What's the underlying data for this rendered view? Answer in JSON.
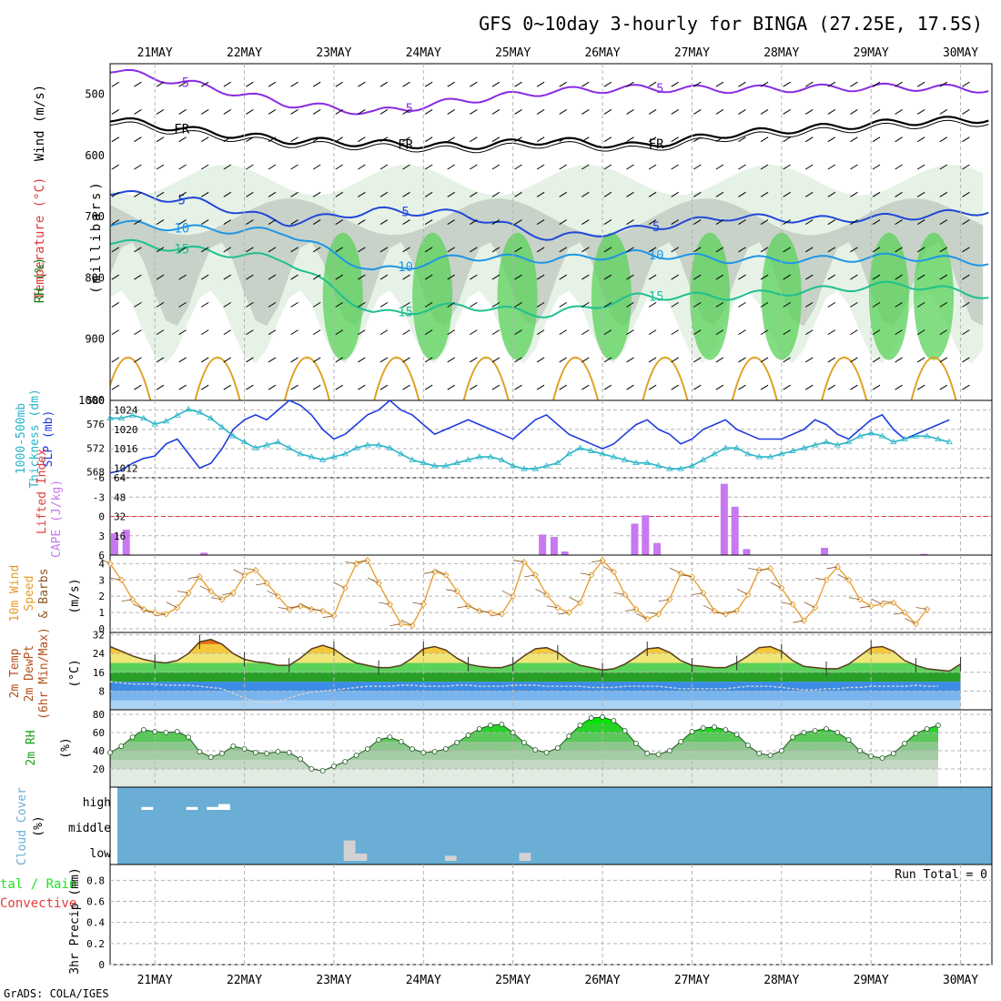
{
  "title": "GFS 0~10day 3-hourly for BINGA (27.25E, 17.5S)",
  "footer": "GrADS: COLA/IGES",
  "run_total_label": "Run Total = 0",
  "colors": {
    "grid": "#b4b4b4",
    "wind_purple": "#8a2be2",
    "freezing_black": "#000000",
    "temp_blue": "#1f48d8",
    "temp_lightblue": "#1e96e6",
    "temp_teal": "#1ec090",
    "temp_orange": "#e0a020",
    "rh_green": "#5ad25a",
    "rh_light": "#e6f2e6",
    "rh_gray": "#c8d2c8",
    "slp_blue": "#1e3cdc",
    "thickness_cyan": "#28b4c8",
    "cape_purple": "#c878f0",
    "lifted_red": "#e03c3c",
    "wind_orange": "#e69b28",
    "barb_brown": "#8b5a2b",
    "cloud_blue": "#6aaed6",
    "cloud_gray": "#d2d2d2",
    "rh2m_green": "#1ee61e"
  },
  "labels": {
    "panel1": {
      "wind": "Wind (m/s)",
      "temperature": "Temperature (°C)",
      "rh": "RH (%)",
      "millibars": "(millibars)"
    },
    "panel2": {
      "thickness": "1000-500mb",
      "thickness2": "Thickness (dm)",
      "slp": "SLP (mb)"
    },
    "panel3": {
      "lifted": "Lifted Index",
      "cape": "CAPE (J/kg)"
    },
    "panel4": {
      "line1": "10m Wind",
      "line2": "Speed",
      "line3": "& Barbs",
      "unit": "(m/s)"
    },
    "panel5": {
      "line1": "2m Temp",
      "line2": "2m DewPt",
      "line3": "(6hr Min/Max)",
      "unit": "(°C)"
    },
    "panel6": {
      "line1": "2m RH",
      "unit": "(%)"
    },
    "panel7": {
      "line1": "Cloud Cover",
      "unit": "(%)"
    },
    "panel8": {
      "line1": "tal / Rain",
      "line2": "Convective",
      "line3": "3hr Precip (mm)"
    }
  },
  "chart_data": [
    {
      "type": "heatmap",
      "x_labels": [
        "21MAY",
        "22MAY",
        "23MAY",
        "24MAY",
        "25MAY",
        "26MAY",
        "27MAY",
        "28MAY",
        "29MAY",
        "30MAY"
      ],
      "y_ticks": [
        500,
        600,
        700,
        800,
        900,
        1000
      ],
      "ylim": [
        1000,
        450
      ],
      "contours": [
        {
          "label": "-5",
          "kind": "temperature",
          "levels_mb": [
            460,
            485,
            515,
            530,
            510,
            495,
            490,
            492,
            490,
            488,
            492
          ]
        },
        {
          "label": "FR",
          "kind": "freezing",
          "levels_mb": [
            540,
            560,
            575,
            580,
            585,
            575,
            585,
            565,
            555,
            545,
            540
          ]
        },
        {
          "label": "5",
          "kind": "temperature",
          "levels_mb": [
            660,
            675,
            710,
            690,
            695,
            735,
            720,
            700,
            705,
            700,
            690
          ]
        },
        {
          "label": "10",
          "kind": "temperature",
          "levels_mb": [
            710,
            720,
            725,
            790,
            765,
            770,
            760,
            770,
            770,
            765,
            775
          ]
        },
        {
          "label": "15",
          "kind": "temperature",
          "levels_mb": [
            740,
            755,
            770,
            860,
            845,
            860,
            830,
            830,
            820,
            810,
            830
          ]
        }
      ],
      "rh_bands_label": "RH (%)"
    },
    {
      "type": "line",
      "x_labels": [
        "21MAY",
        "22MAY",
        "23MAY",
        "24MAY",
        "25MAY",
        "26MAY",
        "27MAY",
        "28MAY",
        "29MAY",
        "30MAY"
      ],
      "left_axis": {
        "ticks": [
          568,
          572,
          576,
          580
        ],
        "ylim": [
          567,
          580
        ]
      },
      "right_axis": {
        "ticks": [
          1012,
          1016,
          1020,
          1024
        ],
        "ylim": [
          1010,
          1026
        ]
      },
      "series": [
        {
          "name": "SLP (mb)",
          "axis": "right",
          "values": [
            1011,
            1011.5,
            1013,
            1014,
            1014.5,
            1017,
            1018,
            1015,
            1012,
            1013,
            1016,
            1020,
            1022,
            1023,
            1022,
            1024,
            1026,
            1025,
            1023,
            1020,
            1018,
            1019,
            1021,
            1023,
            1024,
            1026,
            1024,
            1023,
            1021,
            1019,
            1020,
            1021,
            1022,
            1021,
            1020,
            1019,
            1018,
            1020,
            1022,
            1023,
            1021,
            1019,
            1018,
            1017,
            1016,
            1017,
            1019,
            1021,
            1022,
            1020,
            1019,
            1017,
            1018,
            1020,
            1021,
            1022,
            1020,
            1019,
            1018,
            1018,
            1018,
            1019,
            1020,
            1022,
            1021,
            1019,
            1018,
            1020,
            1022,
            1023,
            1020,
            1018,
            1019,
            1020,
            1021,
            1022
          ]
        },
        {
          "name": "1000-500mb Thickness (dm)",
          "axis": "left",
          "values": [
            577,
            577,
            577.5,
            577,
            576,
            576.5,
            577.5,
            578.5,
            578,
            577,
            575.5,
            574,
            573,
            572,
            572.5,
            573,
            572,
            571,
            570.5,
            570,
            570.5,
            571,
            572,
            572.5,
            572.5,
            572,
            571,
            570,
            569.5,
            569,
            569,
            569.5,
            570,
            570.5,
            570.5,
            570,
            569,
            568.5,
            568.5,
            569,
            569.5,
            571,
            572,
            571.5,
            571,
            570.5,
            570,
            569.5,
            569.5,
            569,
            568.5,
            568.5,
            569,
            570,
            571,
            572,
            572,
            571,
            570.5,
            570.5,
            571,
            571.5,
            572,
            572.5,
            573,
            572.5,
            573,
            574,
            574.5,
            574,
            573,
            573.5,
            574,
            574,
            573.5,
            573
          ]
        }
      ]
    },
    {
      "type": "bar",
      "x_labels": [
        "21MAY",
        "22MAY",
        "23MAY",
        "24MAY",
        "25MAY",
        "26MAY",
        "27MAY",
        "28MAY",
        "29MAY",
        "30MAY"
      ],
      "cape_ticks": [
        16,
        32,
        48,
        64
      ],
      "lifted_ticks": [
        -6,
        -3,
        0,
        3,
        6
      ],
      "ylim": [
        0,
        64
      ],
      "bars": [
        {
          "day": 20.55,
          "value": 18
        },
        {
          "day": 20.68,
          "value": 21
        },
        {
          "day": 21.55,
          "value": 2
        },
        {
          "day": 25.33,
          "value": 17
        },
        {
          "day": 25.46,
          "value": 15
        },
        {
          "day": 25.58,
          "value": 3
        },
        {
          "day": 26.36,
          "value": 26
        },
        {
          "day": 26.48,
          "value": 33
        },
        {
          "day": 26.61,
          "value": 10
        },
        {
          "day": 27.36,
          "value": 59
        },
        {
          "day": 27.48,
          "value": 40
        },
        {
          "day": 27.61,
          "value": 5
        },
        {
          "day": 28.48,
          "value": 6
        },
        {
          "day": 29.59,
          "value": 1
        }
      ],
      "lifted_index_zero_line": 0
    },
    {
      "type": "line",
      "x_labels": [
        "21MAY",
        "22MAY",
        "23MAY",
        "24MAY",
        "25MAY",
        "26MAY",
        "27MAY",
        "28MAY",
        "29MAY",
        "30MAY"
      ],
      "y_ticks": [
        0,
        1,
        2,
        3,
        4
      ],
      "ylim": [
        0,
        4.3
      ],
      "series": [
        {
          "name": "10m Wind Speed",
          "values": [
            4,
            3,
            1.8,
            1.2,
            1,
            0.9,
            1.3,
            2.2,
            3.2,
            2.3,
            1.8,
            2.2,
            3.3,
            3.6,
            2.8,
            2,
            1.2,
            1.4,
            1.2,
            1.1,
            0.8,
            2.5,
            4,
            4.2,
            2.8,
            1.5,
            0.3,
            0.2,
            1.5,
            3.5,
            3.3,
            2.3,
            1.4,
            1.1,
            1,
            0.9,
            2,
            4.1,
            3.3,
            2.1,
            1.3,
            1,
            1.6,
            3.3,
            4.2,
            3.5,
            2.1,
            1.2,
            0.6,
            0.9,
            1.8,
            3.4,
            3.2,
            2.2,
            1.1,
            0.9,
            1.1,
            2.1,
            3.6,
            3.7,
            2.5,
            1.5,
            0.5,
            1.3,
            3,
            3.8,
            3,
            1.8,
            1.4,
            1.5,
            1.6,
            1,
            0.3,
            1.2
          ]
        }
      ]
    },
    {
      "type": "area",
      "x_labels": [
        "21MAY",
        "22MAY",
        "23MAY",
        "24MAY",
        "25MAY",
        "26MAY",
        "27MAY",
        "28MAY",
        "29MAY",
        "30MAY"
      ],
      "y_ticks": [
        8,
        16,
        24,
        32
      ],
      "ylim": [
        0,
        33
      ],
      "series": [
        {
          "name": "2m Temp",
          "values": [
            27,
            25,
            23,
            21.5,
            20.5,
            20,
            21,
            24,
            29,
            30,
            28,
            24,
            21.5,
            20.5,
            20,
            19,
            19,
            22,
            26,
            27.5,
            26,
            22.5,
            20,
            19,
            18,
            18,
            19,
            22,
            26,
            27,
            25.5,
            22,
            19.5,
            18.5,
            18,
            18,
            19.5,
            23,
            26,
            26.5,
            24.5,
            21,
            19,
            18,
            17,
            17.5,
            19.5,
            22.5,
            26,
            26.5,
            24.5,
            21,
            19,
            18.5,
            18,
            18,
            20,
            23,
            26.5,
            27,
            25,
            21,
            18.5,
            18,
            17.5,
            17.5,
            19.5,
            23,
            26.5,
            27,
            25,
            21,
            19,
            17.5,
            17,
            16.5,
            19.5
          ]
        },
        {
          "name": "2m DewPt",
          "values": [
            12,
            11.5,
            11,
            11,
            11,
            10.5,
            10.5,
            10.5,
            10,
            9.5,
            9,
            7,
            5,
            3.5,
            3,
            3.5,
            5,
            6.5,
            7.5,
            8,
            8.5,
            9,
            9.5,
            10,
            10,
            10,
            10.5,
            10.5,
            10,
            10,
            10,
            10.5,
            10.5,
            10,
            10,
            10,
            10.5,
            10.5,
            10.5,
            10,
            10,
            10,
            10,
            9.5,
            9.5,
            9.5,
            10,
            10,
            10,
            10,
            9.5,
            9,
            9,
            9,
            9,
            9,
            9.5,
            10,
            10,
            10,
            9.5,
            9,
            8.5,
            8.5,
            9,
            9,
            9.5,
            9.5,
            10,
            10,
            10,
            10,
            10.5,
            10,
            10
          ]
        }
      ]
    },
    {
      "type": "area",
      "x_labels": [
        "21MAY",
        "22MAY",
        "23MAY",
        "24MAY",
        "25MAY",
        "26MAY",
        "27MAY",
        "28MAY",
        "29MAY",
        "30MAY"
      ],
      "y_ticks": [
        20,
        40,
        60,
        80
      ],
      "ylim": [
        0,
        85
      ],
      "series": [
        {
          "name": "2m RH",
          "values": [
            38,
            45,
            55,
            63,
            61,
            60,
            61,
            55,
            39,
            33,
            37,
            45,
            42,
            38,
            37,
            39,
            38,
            31,
            20,
            18,
            23,
            28,
            35,
            42,
            52,
            55,
            50,
            42,
            38,
            39,
            42,
            49,
            57,
            64,
            68,
            69,
            60,
            49,
            41,
            38,
            43,
            56,
            68,
            76,
            77,
            73,
            62,
            48,
            37,
            36,
            40,
            50,
            61,
            65,
            66,
            63,
            58,
            46,
            37,
            35,
            40,
            55,
            60,
            62,
            64,
            60,
            52,
            40,
            34,
            32,
            37,
            48,
            59,
            64,
            68
          ]
        }
      ]
    },
    {
      "type": "bar",
      "x_labels": [
        "21MAY",
        "22MAY",
        "23MAY",
        "24MAY",
        "25MAY",
        "26MAY",
        "27MAY",
        "28MAY",
        "29MAY",
        "30MAY"
      ],
      "categories": [
        "high",
        "middle",
        "low"
      ],
      "blocks": [
        {
          "level": "high",
          "day": 20.85,
          "width": 0.13,
          "value": 4
        },
        {
          "level": "high",
          "day": 21.35,
          "width": 0.13,
          "value": 4
        },
        {
          "level": "high",
          "day": 21.58,
          "width": 0.13,
          "value": 4
        },
        {
          "level": "high",
          "day": 21.71,
          "width": 0.13,
          "value": 8
        },
        {
          "level": "low",
          "day": 23.11,
          "width": 0.13,
          "value": 28
        },
        {
          "level": "low",
          "day": 23.24,
          "width": 0.13,
          "value": 10
        },
        {
          "level": "low",
          "day": 24.24,
          "width": 0.13,
          "value": 7
        },
        {
          "level": "low",
          "day": 25.07,
          "width": 0.13,
          "value": 11
        }
      ]
    },
    {
      "type": "bar",
      "x_labels": [
        "21MAY",
        "22MAY",
        "23MAY",
        "24MAY",
        "25MAY",
        "26MAY",
        "27MAY",
        "28MAY",
        "29MAY",
        "30MAY"
      ],
      "y_ticks": [
        0,
        0.2,
        0.4,
        0.6,
        0.8
      ],
      "y_tick_labels": [
        "0",
        "0.2",
        "0.4",
        "0.6",
        "0.8"
      ],
      "ylim": [
        0,
        0.95
      ],
      "values": []
    }
  ]
}
